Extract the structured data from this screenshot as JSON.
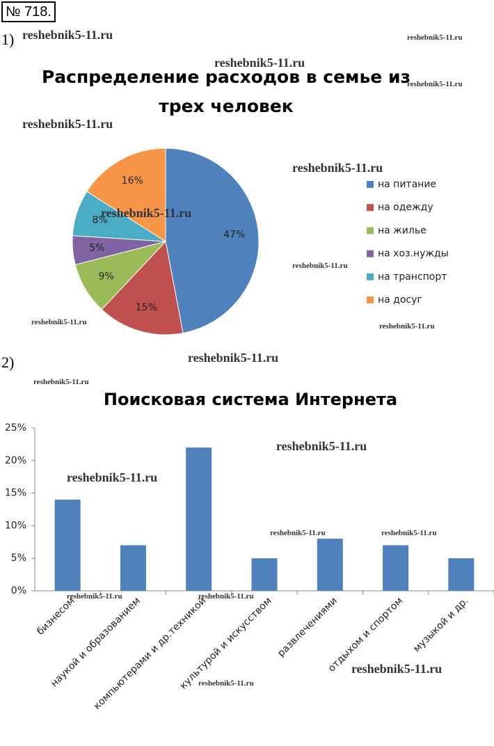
{
  "header": {
    "number": "№ 718.",
    "parts": [
      "1)",
      "2)"
    ],
    "watermark": "reshebnik5-11.ru"
  },
  "chart_data": [
    {
      "type": "pie",
      "title": "Распределение расходов в семье из трех человек",
      "categories": [
        "на питание",
        "на одежду",
        "на жилье",
        "на хоз.нужды",
        "на транспорт",
        "на досуг"
      ],
      "values": [
        47,
        15,
        9,
        5,
        8,
        16
      ],
      "value_labels": [
        "47%",
        "15%",
        "9%",
        "5%",
        "8%",
        "16%"
      ],
      "colors": [
        "#4f81bd",
        "#c0504d",
        "#9bbb59",
        "#8064a2",
        "#4bacc6",
        "#f79646"
      ],
      "legend": "right"
    },
    {
      "type": "bar",
      "title": "Поисковая система Интернета",
      "categories": [
        "бизнесом",
        "наукой и образованием",
        "компьютерами и др.техникой",
        "культурой и искусством",
        "развлечениями",
        "отдыхом и спортом",
        "музыкой и др."
      ],
      "values": [
        14,
        7,
        22,
        5,
        8,
        7,
        5
      ],
      "color": "#4f81bd",
      "ylim": [
        0,
        25
      ],
      "yticks": [
        {
          "value": 0,
          "label": "0%"
        },
        {
          "value": 5,
          "label": "5%"
        },
        {
          "value": 10,
          "label": "10%"
        },
        {
          "value": 15,
          "label": "15%"
        },
        {
          "value": 20,
          "label": "20%"
        },
        {
          "value": 25,
          "label": "25%"
        }
      ],
      "grid": false
    }
  ]
}
